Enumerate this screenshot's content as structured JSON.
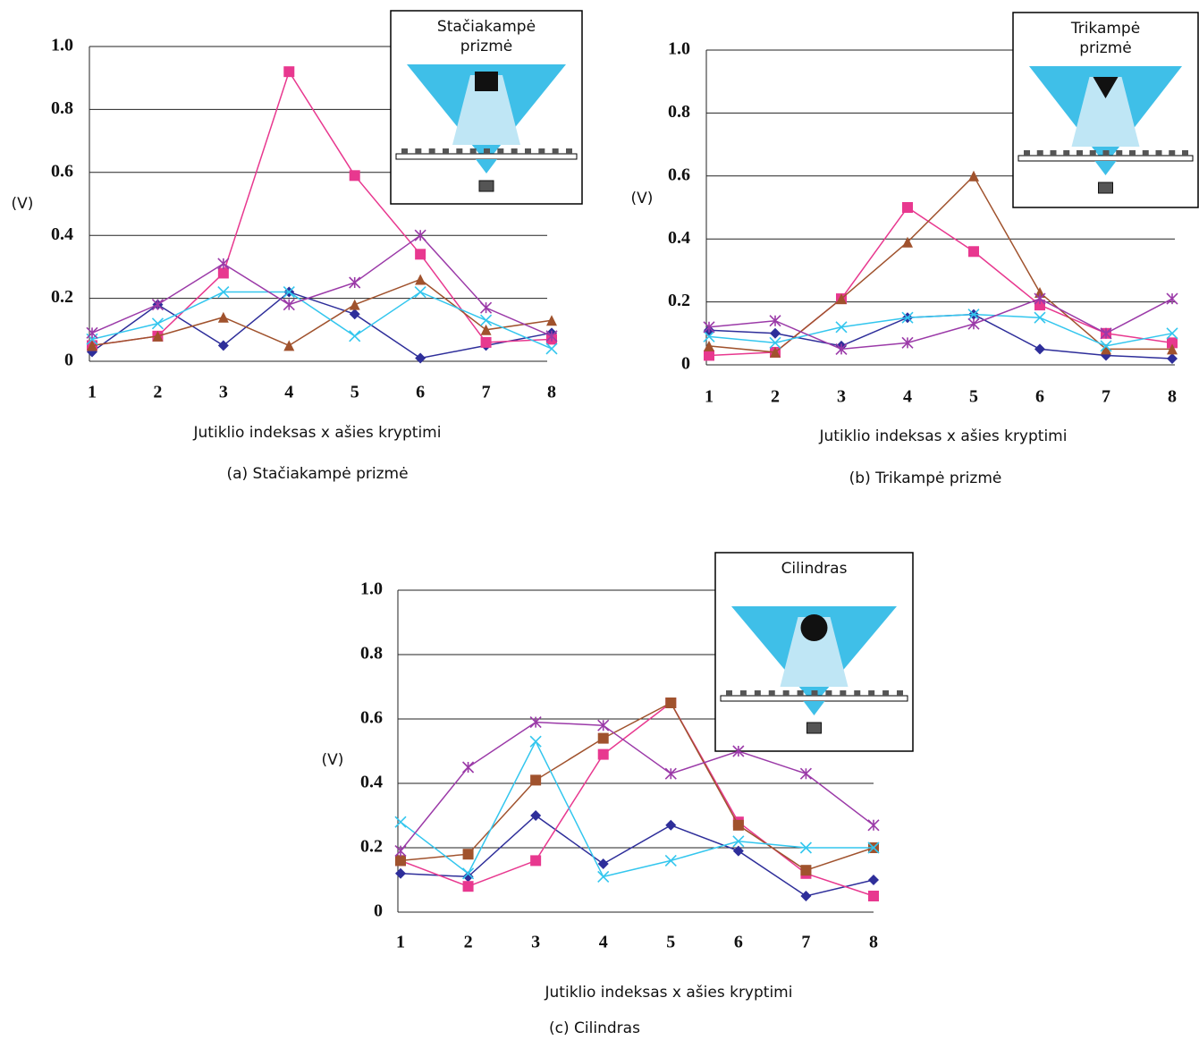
{
  "chart_data": [
    {
      "type": "line",
      "title": "(a) Stačiakampė prizmė",
      "x_label": "Jutiklio indeksas x ašies kryptimi",
      "y_label": "(V)",
      "inset_label": [
        "Stačiakampė",
        "prizmė"
      ],
      "inset_object": "square",
      "x": [
        1,
        2,
        3,
        4,
        5,
        6,
        7,
        8
      ],
      "xlim": [
        1,
        8
      ],
      "xticks": [
        1,
        2,
        3,
        4,
        5,
        6,
        7,
        8
      ],
      "ylim": [
        0,
        1
      ],
      "yticks": [
        0,
        0.2,
        0.4,
        0.6,
        0.8,
        {
          "value": 1,
          "label": "1.0"
        }
      ],
      "grid": true,
      "series": [
        {
          "color": "#2e2e9a",
          "marker": "diamond",
          "values": [
            0.03,
            0.18,
            0.05,
            0.22,
            0.15,
            0.01,
            0.05,
            0.09
          ]
        },
        {
          "color": "#e8388f",
          "marker": "square",
          "values": [
            0.05,
            0.08,
            0.28,
            0.92,
            0.59,
            0.34,
            0.06,
            0.07
          ]
        },
        {
          "color": "#a0522d",
          "marker": "triangle",
          "values": [
            0.05,
            0.08,
            0.14,
            0.05,
            0.18,
            0.26,
            0.1,
            0.13
          ]
        },
        {
          "color": "#33c6ee",
          "marker": "x",
          "values": [
            0.07,
            0.12,
            0.22,
            0.22,
            0.08,
            0.22,
            0.13,
            0.04
          ]
        },
        {
          "color": "#9b3aa8",
          "marker": "star",
          "values": [
            0.09,
            0.18,
            0.31,
            0.18,
            0.25,
            0.4,
            0.17,
            0.08
          ]
        }
      ]
    },
    {
      "type": "line",
      "title": "(b) Trikampė prizmė",
      "x_label": "Jutiklio indeksas x ašies kryptimi",
      "y_label": "(V)",
      "inset_label": [
        "Trikampė",
        "prizmė"
      ],
      "inset_object": "triangle",
      "x": [
        1,
        2,
        3,
        4,
        5,
        6,
        7,
        8
      ],
      "xlim": [
        1,
        8
      ],
      "xticks": [
        1,
        2,
        3,
        4,
        5,
        6,
        7,
        8
      ],
      "ylim": [
        0,
        1
      ],
      "yticks": [
        0,
        0.2,
        0.4,
        0.6,
        0.8,
        {
          "value": 1,
          "label": "1.0"
        }
      ],
      "grid": true,
      "series": [
        {
          "color": "#2e2e9a",
          "marker": "diamond",
          "values": [
            0.11,
            0.1,
            0.06,
            0.15,
            0.16,
            0.05,
            0.03,
            0.02
          ]
        },
        {
          "color": "#e8388f",
          "marker": "square",
          "values": [
            0.03,
            0.04,
            0.21,
            0.5,
            0.36,
            0.19,
            0.1,
            0.07
          ]
        },
        {
          "color": "#a0522d",
          "marker": "triangle",
          "values": [
            0.06,
            0.04,
            0.21,
            0.39,
            0.6,
            0.23,
            0.05,
            0.05
          ]
        },
        {
          "color": "#33c6ee",
          "marker": "x",
          "values": [
            0.09,
            0.07,
            0.12,
            0.15,
            0.16,
            0.15,
            0.06,
            0.1
          ]
        },
        {
          "color": "#9b3aa8",
          "marker": "star",
          "values": [
            0.12,
            0.14,
            0.05,
            0.07,
            0.13,
            0.21,
            0.1,
            0.21
          ]
        }
      ]
    },
    {
      "type": "line",
      "title": "(c) Cilindras",
      "x_label": "Jutiklio indeksas x ašies kryptimi",
      "y_label": "(V)",
      "inset_label": [
        "Cilindras"
      ],
      "inset_object": "circle",
      "x": [
        1,
        2,
        3,
        4,
        5,
        6,
        7,
        8
      ],
      "xlim": [
        1,
        8
      ],
      "xticks": [
        1,
        2,
        3,
        4,
        5,
        6,
        7,
        8
      ],
      "ylim": [
        0,
        1
      ],
      "yticks": [
        0,
        0.2,
        0.4,
        0.6,
        0.8,
        {
          "value": 1,
          "label": "1.0"
        }
      ],
      "grid": true,
      "series": [
        {
          "color": "#2e2e9a",
          "marker": "diamond",
          "values": [
            0.12,
            0.11,
            0.3,
            0.15,
            0.27,
            0.19,
            0.05,
            0.1
          ]
        },
        {
          "color": "#e8388f",
          "marker": "square",
          "values": [
            0.16,
            0.08,
            0.16,
            0.49,
            0.65,
            0.28,
            0.12,
            0.05
          ]
        },
        {
          "color": "#a0522d",
          "marker": "square",
          "values": [
            0.16,
            0.18,
            0.41,
            0.54,
            0.65,
            0.27,
            0.13,
            0.2
          ]
        },
        {
          "color": "#33c6ee",
          "marker": "x",
          "values": [
            0.28,
            0.12,
            0.53,
            0.11,
            0.16,
            0.22,
            0.2,
            0.2
          ]
        },
        {
          "color": "#9b3aa8",
          "marker": "star",
          "values": [
            0.19,
            0.45,
            0.59,
            0.58,
            0.43,
            0.5,
            0.43,
            0.27
          ]
        }
      ]
    }
  ]
}
